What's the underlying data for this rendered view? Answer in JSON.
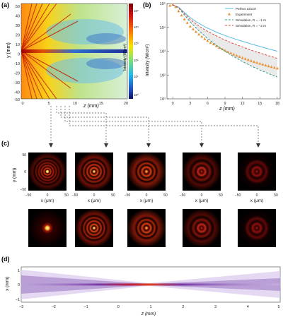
{
  "panels": {
    "a": {
      "label": "(a)",
      "ylabel": "y (mm)",
      "xlabel": "z (mm)",
      "yticks": [
        "50",
        "40",
        "30",
        "20",
        "10",
        "0",
        "-10",
        "-20",
        "-30",
        "-40",
        "-50"
      ],
      "xticks": [
        "0",
        "5",
        "10",
        "15",
        "20"
      ],
      "colorbar": {
        "label": "Intensity (W/cm²)",
        "ticks": [
          "10⁵",
          "10⁴",
          "10³",
          "10²",
          "10¹",
          "10⁰"
        ]
      }
    },
    "b": {
      "label": "(b)",
      "ylabel": "Intensity (W/cm²)",
      "xlabel": "z (mm)",
      "yticks": [
        "10⁵",
        "10⁴",
        "10³",
        "10²",
        "10¹"
      ],
      "xticks": [
        "0",
        "3",
        "6",
        "9",
        "12",
        "15",
        "18"
      ]
    },
    "c": {
      "label": "(c)",
      "ylabel": "y (mm)",
      "xlabel": "x (μm)",
      "yticks": [
        "50",
        "0",
        "−50"
      ],
      "xticks": [
        "−50",
        "0",
        "50"
      ]
    },
    "d": {
      "label": "(d)",
      "ylabel": "x (mm)",
      "xlabel": "z (mm)",
      "yticks": [
        "1",
        "0",
        "−1"
      ],
      "xticks": [
        "−3",
        "−2",
        "−1",
        "0",
        "1",
        "2",
        "3",
        "4",
        "5"
      ]
    }
  },
  "chart_data": {
    "type": "line",
    "legend_position": "top-right",
    "ylog": true,
    "ylim": [
      10,
      100000
    ],
    "xlim": [
      -1,
      18.5
    ],
    "series": [
      {
        "name": "Perfect axicon",
        "color": "#5bbbe3",
        "style": "solid",
        "x": [
          0,
          1,
          2,
          3,
          4,
          5,
          6,
          8,
          10,
          12,
          14,
          16,
          18
        ],
        "y": [
          88000,
          70000,
          42000,
          26000,
          17500,
          12500,
          9200,
          5600,
          3700,
          2600,
          1850,
          1350,
          1000
        ]
      },
      {
        "name": "Experiment",
        "color": "#e8943a",
        "style": "triangles",
        "x": [
          -0.5,
          0,
          0.5,
          1,
          1.5,
          2,
          2.5,
          3,
          3.5,
          4,
          4.5,
          5,
          5.5,
          6,
          6.5,
          7,
          7.5,
          8,
          8.5,
          9,
          9.5,
          10,
          10.5,
          11,
          11.5,
          12,
          12.5,
          13,
          13.5,
          14,
          14.5,
          15,
          15.5,
          16,
          16.5,
          17,
          17.5,
          18
        ],
        "y": [
          82000,
          90000,
          72000,
          48000,
          32000,
          22000,
          15500,
          11000,
          8400,
          6500,
          5100,
          4100,
          3300,
          2750,
          2300,
          1950,
          1650,
          1420,
          1230,
          1070,
          940,
          830,
          735,
          655,
          590,
          530,
          480,
          435,
          395,
          360,
          330,
          302,
          278,
          256,
          237,
          220,
          205,
          192
        ]
      },
      {
        "name": "Simulation, R = −1 m",
        "color": "#2f9a8e",
        "style": "dashed",
        "x": [
          0,
          1,
          2,
          3,
          4,
          5,
          6,
          8,
          10,
          12,
          14,
          16,
          18
        ],
        "y": [
          88000,
          65000,
          33000,
          17000,
          9500,
          5600,
          3400,
          1450,
          700,
          370,
          210,
          128,
          82
        ]
      },
      {
        "name": "Simulation, R = −2 m",
        "color": "#d94a3f",
        "style": "dashed",
        "x": [
          0,
          1,
          2,
          3,
          4,
          5,
          6,
          8,
          10,
          12,
          14,
          16,
          18
        ],
        "y": [
          88000,
          68000,
          38000,
          22000,
          14000,
          9500,
          6800,
          3800,
          2300,
          1500,
          1000,
          700,
          500
        ]
      }
    ]
  }
}
